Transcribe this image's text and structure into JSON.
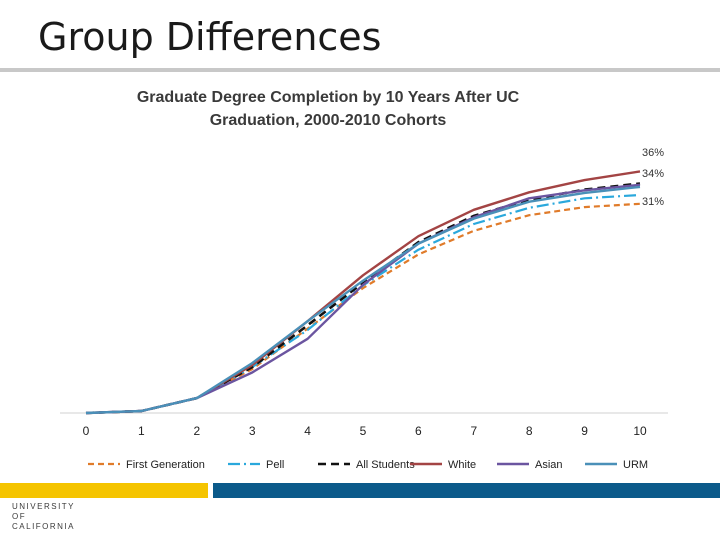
{
  "slide": {
    "title": "Group Differences"
  },
  "logo": {
    "line1": "UNIVERSITY",
    "line2": "OF",
    "line3": "CALIFORNIA"
  },
  "colors": {
    "gold_bar": "#f5c400",
    "blue_bar": "#0b5a8a"
  },
  "chart_data": {
    "type": "line",
    "title": "Graduate Degree Completion by 10 Years After UC Graduation, 2000-2010 Cohorts",
    "title_lines": [
      "Graduate Degree Completion by 10 Years After UC",
      "Graduation, 2000-2010 Cohorts"
    ],
    "xlabel": "",
    "ylabel": "",
    "x": [
      0,
      1,
      2,
      3,
      4,
      5,
      6,
      7,
      8,
      9,
      10
    ],
    "ylim": [
      0,
      40
    ],
    "grid": false,
    "legend": "bottom",
    "series": [
      {
        "name": "First Generation",
        "color": "#e07b2a",
        "dash": "6,4",
        "width": 2.2,
        "values": [
          0,
          0.3,
          2.2,
          6.5,
          12.5,
          18.5,
          23.5,
          27.0,
          29.3,
          30.5,
          31.0
        ]
      },
      {
        "name": "Pell",
        "color": "#2aa8dc",
        "dash": "12,4,2,4",
        "width": 2.2,
        "values": [
          0,
          0.3,
          2.2,
          6.8,
          12.3,
          18.9,
          24.2,
          28.0,
          30.4,
          31.8,
          32.3
        ]
      },
      {
        "name": "All Students",
        "color": "#111111",
        "dash": "8,5",
        "width": 2.6,
        "values": [
          0,
          0.3,
          2.2,
          6.8,
          13.0,
          19.3,
          25.3,
          29.2,
          31.6,
          33.1,
          34.0
        ]
      },
      {
        "name": "White",
        "color": "#a34444",
        "dash": "",
        "width": 2.4,
        "values": [
          0,
          0.3,
          2.2,
          7.1,
          13.6,
          20.4,
          26.2,
          30.1,
          32.7,
          34.5,
          35.8
        ]
      },
      {
        "name": "Asian",
        "color": "#6b55a0",
        "dash": "",
        "width": 2.4,
        "values": [
          0,
          0.3,
          2.2,
          6.0,
          11.0,
          19.0,
          25.1,
          29.0,
          31.8,
          33.0,
          33.8
        ]
      },
      {
        "name": "URM",
        "color": "#4a90b8",
        "dash": "",
        "width": 2.4,
        "values": [
          0,
          0.3,
          2.2,
          7.4,
          13.6,
          19.6,
          25.1,
          28.8,
          31.3,
          32.6,
          33.5
        ]
      }
    ],
    "annotations": [
      {
        "text": "36%",
        "x": 10,
        "y": 38.1
      },
      {
        "text": "34%",
        "x": 10,
        "y": 35.0
      },
      {
        "text": "31%",
        "x": 10,
        "y": 30.8
      }
    ]
  }
}
